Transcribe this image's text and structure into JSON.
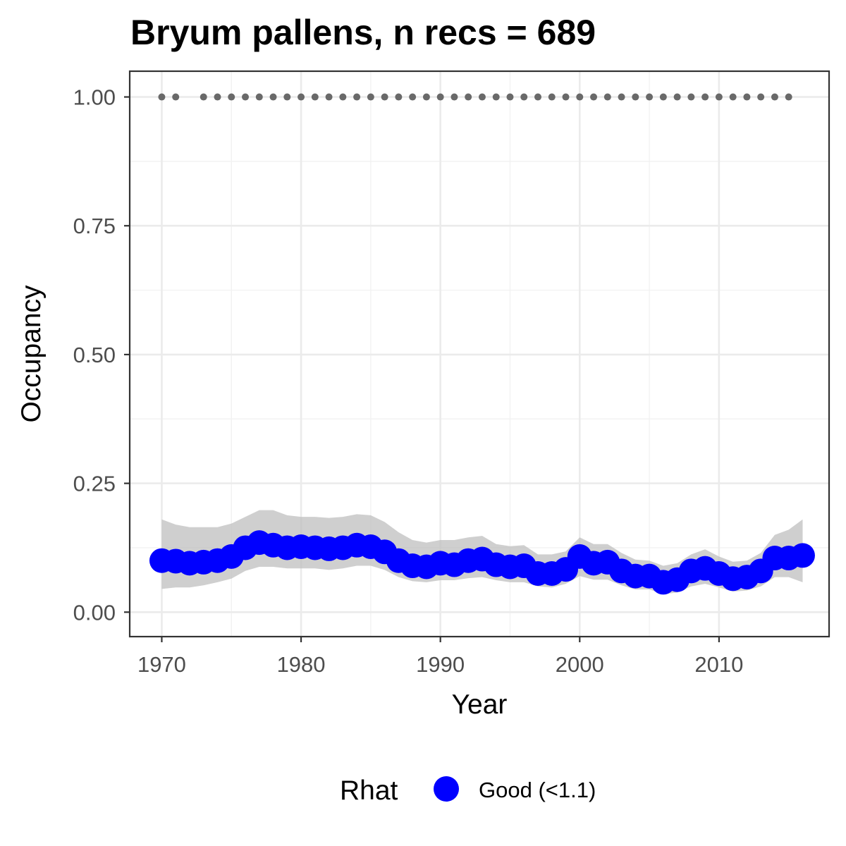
{
  "chart_data": {
    "type": "scatter",
    "title": "Bryum pallens, n recs = 689",
    "xlabel": "Year",
    "ylabel": "Occupancy",
    "xlim": [
      1967.7,
      2017.9
    ],
    "ylim": [
      -0.0475,
      1.05
    ],
    "x_ticks": [
      1970,
      1980,
      1990,
      2000,
      2010
    ],
    "x_tick_labels": [
      "1970",
      "1980",
      "1990",
      "2000",
      "2010"
    ],
    "y_ticks": [
      0,
      0.25,
      0.5,
      0.75,
      1
    ],
    "y_tick_labels": [
      "0.00",
      "0.25",
      "0.50",
      "0.75",
      "1.00"
    ],
    "grid": true,
    "legend": {
      "position": "bottom",
      "title": "Rhat",
      "entries": [
        {
          "label": "Good (<1.1)",
          "color": "#0000ff"
        }
      ]
    },
    "series": [
      {
        "name": "Good (<1.1)",
        "kind": "points",
        "color": "#0000ff",
        "x": [
          1970,
          1971,
          1972,
          1973,
          1974,
          1975,
          1976,
          1977,
          1978,
          1979,
          1980,
          1981,
          1982,
          1983,
          1984,
          1985,
          1986,
          1987,
          1988,
          1989,
          1990,
          1991,
          1992,
          1993,
          1994,
          1995,
          1996,
          1997,
          1998,
          1999,
          2000,
          2001,
          2002,
          2003,
          2004,
          2005,
          2006,
          2007,
          2008,
          2009,
          2010,
          2011,
          2012,
          2013,
          2014,
          2015,
          2016
        ],
        "y": [
          0.1,
          0.099,
          0.095,
          0.097,
          0.1,
          0.108,
          0.125,
          0.135,
          0.13,
          0.125,
          0.127,
          0.125,
          0.123,
          0.125,
          0.13,
          0.127,
          0.117,
          0.1,
          0.09,
          0.088,
          0.095,
          0.092,
          0.1,
          0.103,
          0.092,
          0.088,
          0.09,
          0.075,
          0.075,
          0.083,
          0.108,
          0.095,
          0.097,
          0.08,
          0.07,
          0.07,
          0.058,
          0.063,
          0.08,
          0.085,
          0.075,
          0.065,
          0.068,
          0.08,
          0.105,
          0.105,
          0.11
        ]
      },
      {
        "name": "",
        "kind": "band",
        "color": "#bdbdbd",
        "x": [
          1970,
          1971,
          1972,
          1973,
          1974,
          1975,
          1976,
          1977,
          1978,
          1979,
          1980,
          1981,
          1982,
          1983,
          1984,
          1985,
          1986,
          1987,
          1988,
          1989,
          1990,
          1991,
          1992,
          1993,
          1994,
          1995,
          1996,
          1997,
          1998,
          1999,
          2000,
          2001,
          2002,
          2003,
          2004,
          2005,
          2006,
          2007,
          2008,
          2009,
          2010,
          2011,
          2012,
          2013,
          2014,
          2015,
          2016
        ],
        "lower": [
          0.045,
          0.048,
          0.048,
          0.052,
          0.058,
          0.065,
          0.08,
          0.088,
          0.088,
          0.085,
          0.085,
          0.085,
          0.082,
          0.085,
          0.09,
          0.09,
          0.082,
          0.068,
          0.06,
          0.058,
          0.062,
          0.062,
          0.066,
          0.068,
          0.062,
          0.058,
          0.058,
          0.05,
          0.048,
          0.055,
          0.07,
          0.063,
          0.063,
          0.052,
          0.044,
          0.044,
          0.035,
          0.038,
          0.05,
          0.055,
          0.048,
          0.04,
          0.042,
          0.05,
          0.068,
          0.068,
          0.058
        ],
        "upper": [
          0.18,
          0.17,
          0.165,
          0.165,
          0.165,
          0.172,
          0.185,
          0.198,
          0.198,
          0.188,
          0.185,
          0.185,
          0.183,
          0.185,
          0.19,
          0.188,
          0.175,
          0.155,
          0.14,
          0.135,
          0.14,
          0.14,
          0.145,
          0.148,
          0.132,
          0.128,
          0.13,
          0.112,
          0.112,
          0.118,
          0.145,
          0.132,
          0.132,
          0.115,
          0.102,
          0.1,
          0.09,
          0.095,
          0.112,
          0.122,
          0.108,
          0.098,
          0.1,
          0.115,
          0.15,
          0.16,
          0.18
        ]
      },
      {
        "name": "",
        "kind": "points",
        "color": "#696969",
        "x": [
          1970,
          1971,
          1973,
          1974,
          1975,
          1976,
          1977,
          1978,
          1979,
          1980,
          1981,
          1982,
          1983,
          1984,
          1985,
          1986,
          1987,
          1988,
          1989,
          1990,
          1991,
          1992,
          1993,
          1994,
          1995,
          1996,
          1997,
          1998,
          1999,
          2000,
          2001,
          2002,
          2003,
          2004,
          2005,
          2006,
          2007,
          2008,
          2009,
          2010,
          2011,
          2012,
          2013,
          2014,
          2015
        ],
        "y": [
          1,
          1,
          1,
          1,
          1,
          1,
          1,
          1,
          1,
          1,
          1,
          1,
          1,
          1,
          1,
          1,
          1,
          1,
          1,
          1,
          1,
          1,
          1,
          1,
          1,
          1,
          1,
          1,
          1,
          1,
          1,
          1,
          1,
          1,
          1,
          1,
          1,
          1,
          1,
          1,
          1,
          1,
          1,
          1,
          1
        ]
      }
    ]
  }
}
